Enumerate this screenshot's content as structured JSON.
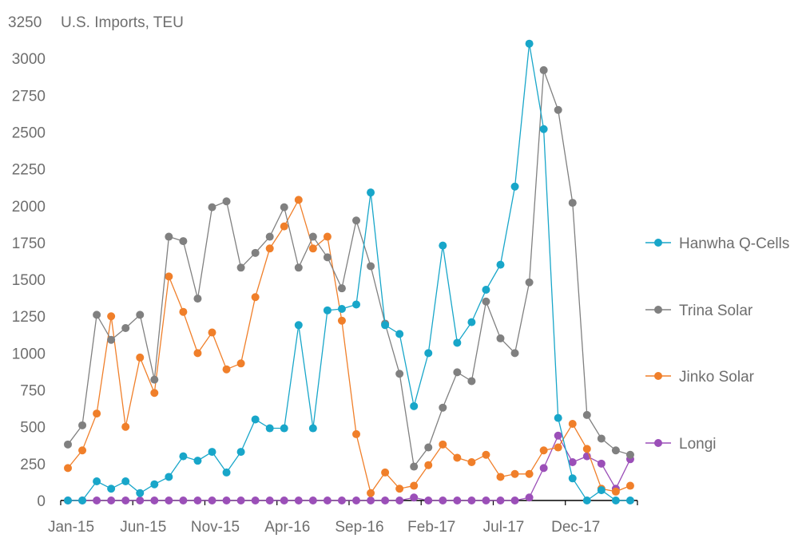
{
  "chart_data": {
    "type": "line",
    "ylabel": "U.S. Imports, TEU",
    "ylim": [
      0,
      3250
    ],
    "yticks": [
      0,
      250,
      500,
      750,
      1000,
      1250,
      1500,
      1750,
      2000,
      2250,
      2500,
      2750,
      3000,
      3250
    ],
    "x": [
      "Jan-15",
      "Feb-15",
      "Mar-15",
      "Apr-15",
      "May-15",
      "Jun-15",
      "Jul-15",
      "Aug-15",
      "Sep-15",
      "Oct-15",
      "Nov-15",
      "Dec-15",
      "Jan-16",
      "Feb-16",
      "Mar-16",
      "Apr-16",
      "May-16",
      "Jun-16",
      "Jul-16",
      "Aug-16",
      "Sep-16",
      "Oct-16",
      "Nov-16",
      "Dec-16",
      "Jan-17",
      "Feb-17",
      "Mar-17",
      "Apr-17",
      "May-17",
      "Jun-17",
      "Jul-17",
      "Aug-17",
      "Sep-17",
      "Oct-17",
      "Nov-17",
      "Dec-17",
      "Jan-18",
      "Feb-18",
      "Mar-18",
      "Apr-18"
    ],
    "xtick_labels": [
      "Jan-15",
      "Jun-15",
      "Nov-15",
      "Apr-16",
      "Sep-16",
      "Feb-17",
      "Jul-17",
      "Dec-17"
    ],
    "legend_position": "right",
    "series": [
      {
        "name": "Hanwha Q-Cells",
        "color": "#18a6c9",
        "values": [
          0,
          0,
          130,
          80,
          130,
          50,
          110,
          160,
          300,
          270,
          330,
          190,
          330,
          550,
          490,
          490,
          1190,
          490,
          1290,
          1300,
          1330,
          2090,
          1190,
          1130,
          640,
          1000,
          1730,
          1070,
          1210,
          1430,
          1600,
          2130,
          3100,
          2520,
          560,
          150,
          0,
          70,
          0,
          0
        ]
      },
      {
        "name": "Trina Solar",
        "color": "#808080",
        "values": [
          380,
          510,
          1260,
          1090,
          1170,
          1260,
          820,
          1790,
          1760,
          1370,
          1990,
          2030,
          1580,
          1680,
          1790,
          1990,
          1580,
          1790,
          1650,
          1440,
          1900,
          1590,
          1200,
          860,
          230,
          360,
          630,
          870,
          810,
          1350,
          1100,
          1000,
          1480,
          2920,
          2650,
          2020,
          580,
          420,
          340,
          310
        ]
      },
      {
        "name": "Jinko Solar",
        "color": "#f07f2a",
        "values": [
          220,
          340,
          590,
          1250,
          500,
          970,
          730,
          1520,
          1280,
          1000,
          1140,
          890,
          930,
          1380,
          1710,
          1860,
          2040,
          1710,
          1790,
          1220,
          450,
          50,
          190,
          80,
          100,
          240,
          380,
          290,
          260,
          310,
          160,
          180,
          180,
          340,
          360,
          520,
          350,
          80,
          60,
          100
        ]
      },
      {
        "name": "Longi",
        "color": "#9b4fb8",
        "values": [
          0,
          0,
          0,
          0,
          0,
          0,
          0,
          0,
          0,
          0,
          0,
          0,
          0,
          0,
          0,
          0,
          0,
          0,
          0,
          0,
          0,
          0,
          0,
          0,
          20,
          0,
          0,
          0,
          0,
          0,
          0,
          0,
          20,
          220,
          440,
          260,
          300,
          250,
          80,
          280
        ]
      }
    ]
  }
}
